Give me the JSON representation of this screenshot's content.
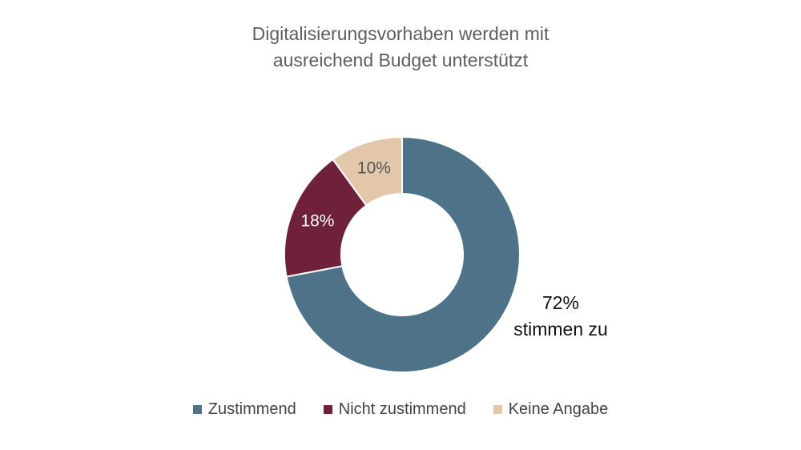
{
  "title_lines": [
    "Digitalisierungsvorhaben werden mit",
    "ausreichend Budget unterstützt"
  ],
  "callout": {
    "line1": "72%",
    "line2": "stimmen zu"
  },
  "chart_data": {
    "type": "pie",
    "donut": true,
    "title": "Digitalisierungsvorhaben werden mit ausreichend Budget unterstützt",
    "legend_position": "bottom",
    "series": [
      {
        "name": "Zustimmend",
        "value": 72,
        "label": "",
        "color": "#4e7389",
        "label_color": "#ffffff"
      },
      {
        "name": "Nicht zustimmend",
        "value": 18,
        "label": "18%",
        "color": "#70213a",
        "label_color": "#ffffff"
      },
      {
        "name": "Keine Angabe",
        "value": 10,
        "label": "10%",
        "color": "#e2c7ab",
        "label_color": "#555555"
      }
    ]
  }
}
